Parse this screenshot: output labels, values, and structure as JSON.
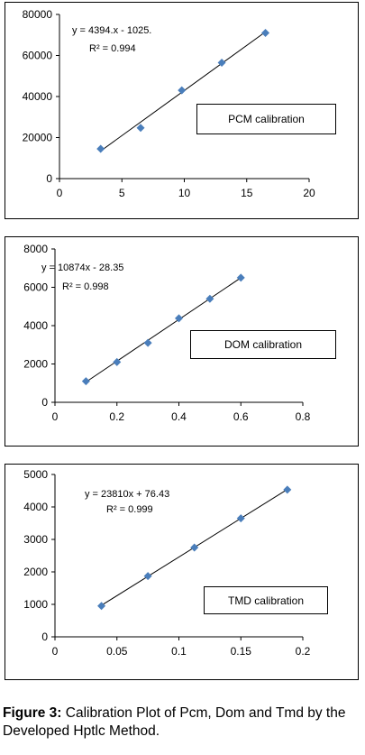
{
  "chart_data": [
    {
      "type": "scatter",
      "title": "",
      "xlabel": "",
      "ylabel": "",
      "xlim": [
        0,
        20
      ],
      "ylim": [
        0,
        80000
      ],
      "x_ticks": [
        "0",
        "5",
        "10",
        "15",
        "20"
      ],
      "y_ticks": [
        "0",
        "20000",
        "40000",
        "60000",
        "80000"
      ],
      "points": [
        {
          "x": 3.3,
          "y": 14500
        },
        {
          "x": 6.5,
          "y": 24700
        },
        {
          "x": 9.8,
          "y": 43000
        },
        {
          "x": 13.0,
          "y": 56500
        },
        {
          "x": 16.5,
          "y": 71000
        }
      ],
      "trendline": {
        "slope": 4394,
        "intercept": -1025
      },
      "equation": "y = 4394.x - 1025.",
      "r2": "R² = 0.994",
      "label": "PCM calibration",
      "grid": false,
      "legend": "none"
    },
    {
      "type": "scatter",
      "title": "",
      "xlabel": "",
      "ylabel": "",
      "xlim": [
        0,
        0.8
      ],
      "ylim": [
        0,
        8000
      ],
      "x_ticks": [
        "0",
        "0.2",
        "0.4",
        "0.6",
        "0.8"
      ],
      "y_ticks": [
        "0",
        "2000",
        "4000",
        "6000",
        "8000"
      ],
      "points": [
        {
          "x": 0.1,
          "y": 1100
        },
        {
          "x": 0.2,
          "y": 2100
        },
        {
          "x": 0.3,
          "y": 3100
        },
        {
          "x": 0.4,
          "y": 4380
        },
        {
          "x": 0.5,
          "y": 5400
        },
        {
          "x": 0.6,
          "y": 6500
        }
      ],
      "trendline": {
        "slope": 10874,
        "intercept": -28.35
      },
      "equation": "y = 10874x - 28.35",
      "r2": "R² = 0.998",
      "label": "DOM calibration",
      "grid": false,
      "legend": "none"
    },
    {
      "type": "scatter",
      "title": "",
      "xlabel": "",
      "ylabel": "",
      "xlim": [
        0,
        0.2
      ],
      "ylim": [
        0,
        5000
      ],
      "x_ticks": [
        "0",
        "0.05",
        "0.1",
        "0.15",
        "0.2"
      ],
      "y_ticks": [
        "0",
        "1000",
        "2000",
        "3000",
        "4000",
        "5000"
      ],
      "points": [
        {
          "x": 0.0375,
          "y": 950
        },
        {
          "x": 0.075,
          "y": 1870
        },
        {
          "x": 0.1125,
          "y": 2750
        },
        {
          "x": 0.15,
          "y": 3650
        },
        {
          "x": 0.1875,
          "y": 4530
        }
      ],
      "trendline": {
        "slope": 23810,
        "intercept": 76.43
      },
      "equation": "y = 23810x + 76.43",
      "r2": "R² = 0.999",
      "label": "TMD calibration",
      "grid": false,
      "legend": "none"
    }
  ],
  "caption": {
    "bold": "Figure 3:",
    "text": " Calibration Plot of Pcm, Dom and Tmd by the Developed Hptlc Method."
  },
  "colors": {
    "marker": "#4a7ebb",
    "line": "#000000"
  }
}
